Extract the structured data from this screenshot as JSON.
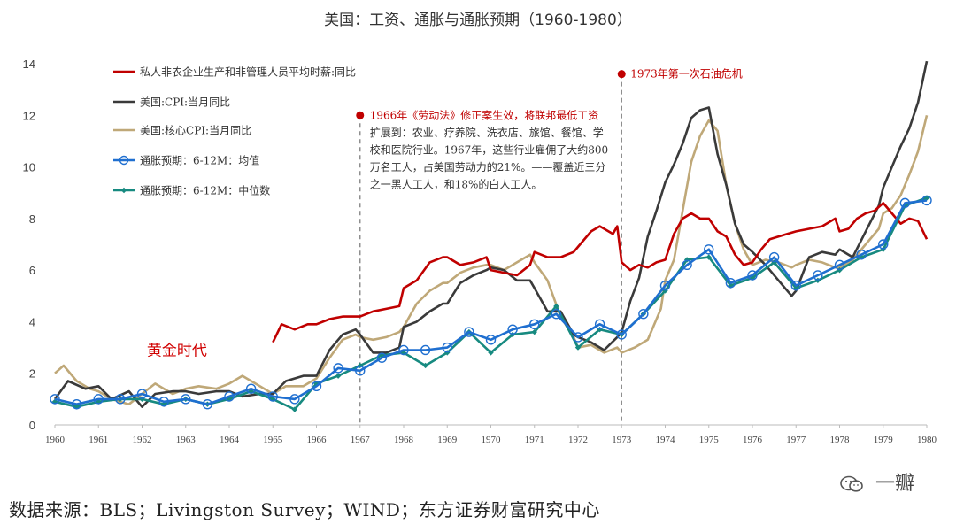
{
  "chart_data": {
    "type": "line",
    "title": "美国：工资、通胀与通胀预期（1960-1980）",
    "xlim": [
      1960,
      1980
    ],
    "ylim": [
      0,
      14
    ],
    "yticks": [
      0,
      2,
      4,
      6,
      8,
      10,
      12,
      14
    ],
    "xticks": [
      "1960",
      "1961",
      "1962",
      "1963",
      "1964",
      "1965",
      "1966",
      "1967",
      "1968",
      "1969",
      "1970",
      "1971",
      "1972",
      "1973",
      "1974",
      "1975",
      "1976",
      "1977",
      "1978",
      "1979",
      "1980"
    ],
    "grid": false,
    "legend_position": "top-left",
    "series": [
      {
        "name": "私人非农企业生产和非管理人员平均时薪:同比",
        "color": "#c00000",
        "marker": "none",
        "x": [
          1965.0,
          1965.2,
          1965.5,
          1965.8,
          1966.0,
          1966.3,
          1966.6,
          1966.9,
          1967.0,
          1967.3,
          1967.6,
          1967.9,
          1968.0,
          1968.3,
          1968.6,
          1968.9,
          1969.0,
          1969.3,
          1969.6,
          1969.9,
          1970.0,
          1970.3,
          1970.6,
          1970.9,
          1971.0,
          1971.3,
          1971.6,
          1971.9,
          1972.0,
          1972.3,
          1972.5,
          1972.8,
          1972.9,
          1973.0,
          1973.2,
          1973.4,
          1973.6,
          1973.8,
          1974.0,
          1974.2,
          1974.4,
          1974.6,
          1974.8,
          1975.0,
          1975.2,
          1975.4,
          1975.6,
          1975.8,
          1976.0,
          1976.2,
          1976.4,
          1976.6,
          1976.8,
          1977.0,
          1977.3,
          1977.6,
          1977.9,
          1978.0,
          1978.2,
          1978.4,
          1978.6,
          1978.8,
          1979.0,
          1979.2,
          1979.4,
          1979.6,
          1979.8,
          1980.0
        ],
        "y": [
          3.2,
          3.9,
          3.7,
          3.9,
          3.9,
          4.1,
          4.2,
          4.2,
          4.2,
          4.4,
          4.5,
          4.6,
          5.3,
          5.6,
          6.3,
          6.5,
          6.5,
          6.2,
          6.3,
          6.5,
          6.0,
          5.9,
          5.8,
          6.2,
          6.7,
          6.5,
          6.5,
          6.7,
          6.9,
          7.5,
          7.7,
          7.4,
          7.7,
          6.3,
          6.0,
          6.2,
          6.1,
          6.3,
          6.4,
          7.4,
          8.0,
          8.2,
          8.0,
          8.0,
          7.5,
          7.3,
          6.6,
          6.2,
          6.3,
          6.8,
          7.2,
          7.3,
          7.4,
          7.5,
          7.6,
          7.7,
          8.0,
          7.5,
          7.6,
          8.0,
          8.2,
          8.3,
          8.6,
          8.2,
          7.8,
          8.0,
          7.9,
          7.2
        ]
      },
      {
        "name": "美国:CPI:当月同比",
        "color": "#3a3a3a",
        "marker": "none",
        "x": [
          1960.0,
          1960.3,
          1960.7,
          1961.0,
          1961.3,
          1961.7,
          1962.0,
          1962.3,
          1962.7,
          1963.0,
          1963.3,
          1963.7,
          1964.0,
          1964.3,
          1964.7,
          1965.0,
          1965.3,
          1965.7,
          1966.0,
          1966.3,
          1966.6,
          1966.9,
          1967.0,
          1967.3,
          1967.6,
          1967.9,
          1968.0,
          1968.3,
          1968.6,
          1968.9,
          1969.0,
          1969.3,
          1969.6,
          1969.9,
          1970.0,
          1970.3,
          1970.6,
          1970.9,
          1971.0,
          1971.3,
          1971.6,
          1971.9,
          1972.0,
          1972.3,
          1972.6,
          1972.9,
          1973.0,
          1973.2,
          1973.4,
          1973.6,
          1973.8,
          1974.0,
          1974.2,
          1974.4,
          1974.6,
          1974.8,
          1975.0,
          1975.2,
          1975.4,
          1975.6,
          1975.8,
          1976.0,
          1976.3,
          1976.6,
          1976.9,
          1977.0,
          1977.3,
          1977.6,
          1977.9,
          1978.0,
          1978.3,
          1978.6,
          1978.9,
          1979.0,
          1979.2,
          1979.4,
          1979.6,
          1979.8,
          1980.0
        ],
        "y": [
          1.0,
          1.7,
          1.4,
          1.5,
          1.0,
          1.3,
          0.7,
          1.2,
          1.3,
          1.3,
          1.2,
          1.3,
          1.3,
          1.1,
          1.2,
          1.2,
          1.7,
          1.9,
          1.9,
          2.9,
          3.5,
          3.7,
          3.5,
          2.8,
          2.8,
          3.0,
          3.8,
          4.0,
          4.4,
          4.7,
          4.7,
          5.5,
          5.8,
          6.0,
          6.1,
          6.0,
          5.6,
          5.6,
          5.3,
          4.4,
          4.4,
          3.5,
          3.4,
          3.2,
          2.9,
          3.4,
          3.6,
          4.8,
          5.7,
          7.3,
          8.3,
          9.4,
          10.1,
          10.9,
          11.9,
          12.2,
          12.3,
          10.5,
          9.3,
          7.8,
          7.0,
          6.7,
          6.2,
          5.6,
          5.0,
          5.2,
          6.5,
          6.7,
          6.6,
          6.8,
          6.5,
          7.5,
          8.5,
          9.2,
          10.0,
          10.8,
          11.5,
          12.5,
          14.1
        ]
      },
      {
        "name": "美国:核心CPI:当月同比",
        "color": "#bfa878",
        "marker": "none",
        "x": [
          1960.0,
          1960.2,
          1960.5,
          1960.8,
          1961.0,
          1961.3,
          1961.7,
          1962.0,
          1962.3,
          1962.7,
          1963.0,
          1963.3,
          1963.7,
          1964.0,
          1964.3,
          1964.7,
          1965.0,
          1965.3,
          1965.7,
          1966.0,
          1966.3,
          1966.6,
          1966.9,
          1967.0,
          1967.3,
          1967.6,
          1967.9,
          1968.0,
          1968.3,
          1968.6,
          1968.9,
          1969.0,
          1969.3,
          1969.6,
          1969.9,
          1970.0,
          1970.3,
          1970.6,
          1970.9,
          1971.0,
          1971.3,
          1971.6,
          1971.9,
          1972.0,
          1972.3,
          1972.6,
          1972.9,
          1973.0,
          1973.3,
          1973.6,
          1973.9,
          1974.0,
          1974.2,
          1974.4,
          1974.6,
          1974.8,
          1975.0,
          1975.2,
          1975.4,
          1975.6,
          1975.8,
          1976.0,
          1976.3,
          1976.6,
          1976.9,
          1977.0,
          1977.3,
          1977.6,
          1977.9,
          1978.0,
          1978.3,
          1978.6,
          1978.9,
          1979.0,
          1979.2,
          1979.4,
          1979.6,
          1979.8,
          1980.0
        ],
        "y": [
          2.0,
          2.3,
          1.7,
          1.4,
          1.3,
          1.0,
          0.8,
          1.2,
          1.6,
          1.2,
          1.4,
          1.5,
          1.4,
          1.6,
          1.9,
          1.5,
          1.2,
          1.5,
          1.5,
          1.8,
          2.6,
          3.3,
          3.5,
          3.4,
          3.3,
          3.4,
          3.6,
          3.8,
          4.7,
          5.2,
          5.5,
          5.5,
          5.9,
          6.1,
          6.2,
          6.2,
          6.0,
          6.3,
          6.6,
          6.3,
          5.6,
          4.2,
          3.4,
          3.0,
          3.1,
          2.8,
          3.0,
          2.8,
          3.0,
          3.3,
          4.5,
          5.6,
          6.4,
          8.3,
          10.2,
          11.2,
          11.8,
          11.4,
          9.3,
          7.8,
          6.8,
          6.2,
          6.4,
          6.3,
          6.1,
          6.2,
          6.4,
          6.3,
          6.1,
          6.1,
          6.4,
          7.0,
          7.6,
          8.2,
          8.4,
          8.9,
          9.7,
          10.6,
          12.0
        ]
      },
      {
        "name": "通胀预期：6-12M：均值",
        "color": "#1f6fd0",
        "marker": "circle",
        "x": [
          1960.0,
          1960.5,
          1961.0,
          1961.5,
          1962.0,
          1962.5,
          1963.0,
          1963.5,
          1964.0,
          1964.5,
          1965.0,
          1965.5,
          1966.0,
          1966.5,
          1967.0,
          1967.5,
          1968.0,
          1968.5,
          1969.0,
          1969.5,
          1970.0,
          1970.5,
          1971.0,
          1971.5,
          1972.0,
          1972.5,
          1973.0,
          1973.5,
          1974.0,
          1974.5,
          1975.0,
          1975.5,
          1976.0,
          1976.5,
          1977.0,
          1977.5,
          1978.0,
          1978.5,
          1979.0,
          1979.5,
          1980.0
        ],
        "y": [
          1.0,
          0.8,
          1.0,
          1.0,
          1.2,
          0.9,
          1.0,
          0.8,
          1.1,
          1.4,
          1.1,
          1.0,
          1.5,
          2.2,
          2.1,
          2.6,
          2.9,
          2.9,
          3.0,
          3.6,
          3.3,
          3.7,
          3.9,
          4.3,
          3.4,
          3.9,
          3.5,
          4.3,
          5.4,
          6.2,
          6.8,
          5.5,
          5.8,
          6.5,
          5.4,
          5.8,
          6.2,
          6.6,
          7.0,
          8.6,
          8.7
        ]
      },
      {
        "name": "通胀预期：6-12M：中位数",
        "color": "#178a80",
        "marker": "diamond",
        "x": [
          1960.0,
          1960.5,
          1961.0,
          1961.5,
          1962.0,
          1962.5,
          1963.0,
          1963.5,
          1964.0,
          1964.5,
          1965.0,
          1965.5,
          1966.0,
          1966.5,
          1967.0,
          1967.5,
          1968.0,
          1968.5,
          1969.0,
          1969.5,
          1970.0,
          1970.5,
          1971.0,
          1971.5,
          1972.0,
          1972.5,
          1973.0,
          1973.5,
          1974.0,
          1974.5,
          1975.0,
          1975.5,
          1976.0,
          1976.5,
          1977.0,
          1977.5,
          1978.0,
          1978.5,
          1979.0,
          1979.5,
          1980.0
        ],
        "y": [
          0.9,
          0.7,
          0.9,
          1.0,
          1.0,
          0.8,
          1.0,
          0.8,
          1.0,
          1.3,
          1.0,
          0.6,
          1.6,
          1.9,
          2.3,
          2.7,
          2.8,
          2.3,
          2.8,
          3.6,
          2.8,
          3.5,
          3.6,
          4.6,
          3.0,
          3.7,
          3.5,
          4.3,
          5.2,
          6.4,
          6.5,
          5.4,
          5.7,
          6.3,
          5.3,
          5.6,
          6.0,
          6.5,
          6.8,
          8.5,
          8.8
        ]
      }
    ],
    "annotations": [
      {
        "label": "1966年《劳动法》修正案生效，将联邦最低工资扩展到：农业、疗养院、洗衣店、旅馆、餐馆、学校和医院行业。1967年，这些行业雇佣了大约800万名工人，占美国劳动力的21%。——覆盖近三分之一黑人工人，和18%的白人工人。",
        "lines": [
          "1966年《劳动法》修正案生效，将联邦最低工资",
          "扩展到：农业、疗养院、洗衣店、旅馆、餐馆、学",
          "校和医院行业。1967年，这些行业雇佣了大约800",
          "万名工人，占美国劳动力的21%。——覆盖近三分",
          "之一黑人工人，和18%的白人工人。"
        ],
        "x": 1967.0,
        "marker_y": 12.0,
        "color": "#c00000"
      },
      {
        "label": "1973年第一次石油危机",
        "x": 1973.0,
        "marker_y": 13.6,
        "color": "#c00000"
      },
      {
        "label": "黄金时代",
        "x": 1962.8,
        "y": 2.7,
        "color": "#d00000"
      }
    ]
  },
  "source": "数据来源：BLS；Livingston Survey；WIND；东方证券财富研究中心",
  "watermark": "一瓣"
}
